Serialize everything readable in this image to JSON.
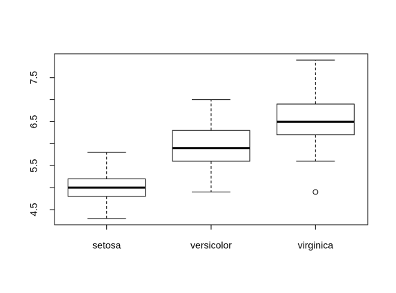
{
  "chart_data": {
    "type": "boxplot",
    "categories": [
      "setosa",
      "versicolor",
      "virginica"
    ],
    "stats": [
      [
        4.3,
        4.8,
        5.0,
        5.2,
        5.8
      ],
      [
        4.9,
        5.6,
        5.9,
        6.3,
        7.0
      ],
      [
        5.6,
        6.2,
        6.5,
        6.9,
        7.9
      ]
    ],
    "outliers": [
      [],
      [],
      [
        4.9
      ]
    ],
    "color": "#000000",
    "ylim": [
      4.156,
      8.044
    ],
    "yticks": [
      4.5,
      5.5,
      6.5,
      7.5
    ],
    "yminor_ticks": [
      5,
      6,
      7
    ]
  }
}
